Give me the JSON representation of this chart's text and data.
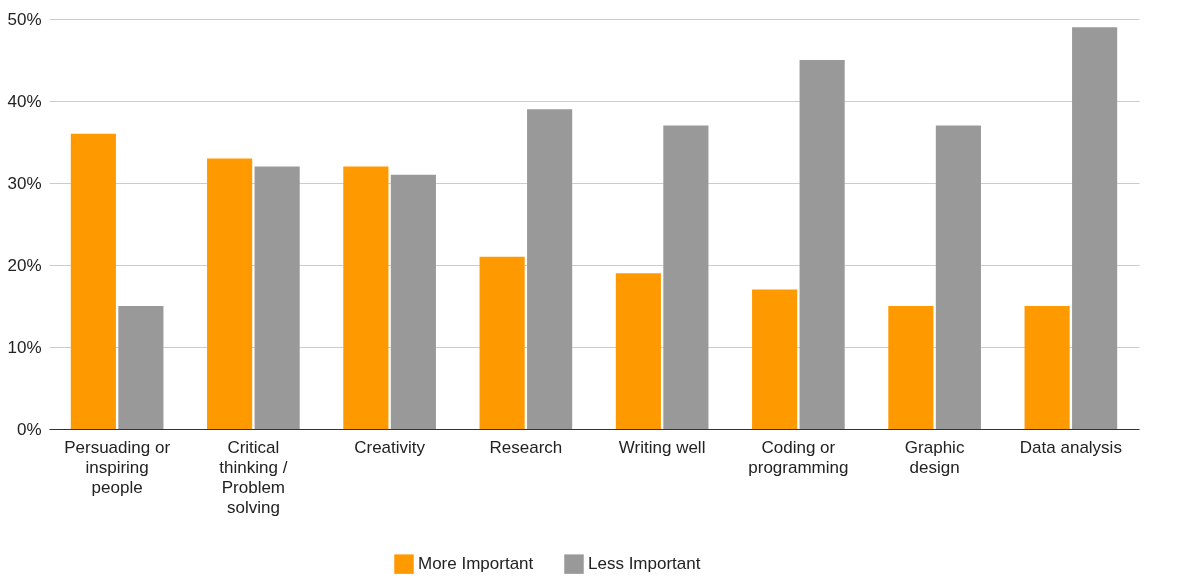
{
  "chart_data": {
    "type": "bar",
    "categories": [
      "Persuading or inspiring people",
      "Critical thinking / Problem solving",
      "Creativity",
      "Research",
      "Writing well",
      "Coding or programming",
      "Graphic design",
      "Data analysis"
    ],
    "series": [
      {
        "name": "More Important",
        "color": "#ff9900",
        "values": [
          36,
          33,
          32,
          21,
          19,
          17,
          15,
          15
        ]
      },
      {
        "name": "Less Important",
        "color": "#999999",
        "values": [
          15,
          32,
          31,
          39,
          37,
          45,
          37,
          49
        ]
      }
    ],
    "ylim": [
      0,
      50
    ],
    "yticks": [
      {
        "value": 0,
        "label": "0%"
      },
      {
        "value": 10,
        "label": "10%"
      },
      {
        "value": 20,
        "label": "20%"
      },
      {
        "value": 30,
        "label": "30%"
      },
      {
        "value": 40,
        "label": "40%"
      },
      {
        "value": 50,
        "label": "50%"
      }
    ],
    "grid": "y",
    "legend": "bottom"
  }
}
